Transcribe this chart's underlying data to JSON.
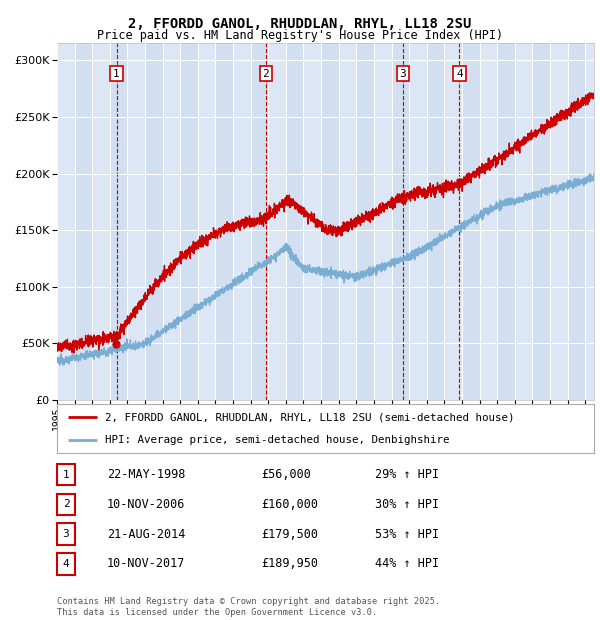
{
  "title_line1": "2, FFORDD GANOL, RHUDDLAN, RHYL, LL18 2SU",
  "title_line2": "Price paid vs. HM Land Registry's House Price Index (HPI)",
  "background_color": "#ffffff",
  "plot_bg_color": "#dce6f5",
  "grid_color": "#ffffff",
  "red_line_color": "#cc0000",
  "blue_line_color": "#7aadd4",
  "transactions": [
    {
      "num": 1,
      "date_str": "22-MAY-1998",
      "price": 56000,
      "hpi_pct": "29%",
      "date_dec": 1998.38
    },
    {
      "num": 2,
      "date_str": "10-NOV-2006",
      "price": 160000,
      "hpi_pct": "30%",
      "date_dec": 2006.86
    },
    {
      "num": 3,
      "date_str": "21-AUG-2014",
      "price": 179500,
      "hpi_pct": "53%",
      "date_dec": 2014.64
    },
    {
      "num": 4,
      "date_str": "10-NOV-2017",
      "price": 189950,
      "hpi_pct": "44%",
      "date_dec": 2017.86
    }
  ],
  "legend_line1": "2, FFORDD GANOL, RHUDDLAN, RHYL, LL18 2SU (semi-detached house)",
  "legend_line2": "HPI: Average price, semi-detached house, Denbighshire",
  "footer": "Contains HM Land Registry data © Crown copyright and database right 2025.\nThis data is licensed under the Open Government Licence v3.0.",
  "xmin": 1995.0,
  "xmax": 2025.5,
  "ymin": 0,
  "ymax": 315000,
  "yticks": [
    0,
    50000,
    100000,
    150000,
    200000,
    250000,
    300000
  ]
}
